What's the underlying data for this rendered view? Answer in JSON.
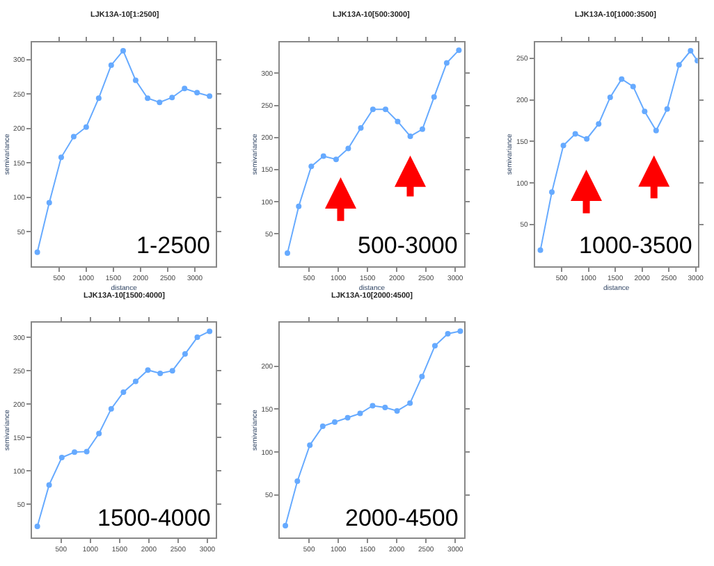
{
  "chart_data": [
    {
      "type": "line",
      "title": "LJK13A-10[1:2500]",
      "xlabel": "distance",
      "ylabel": "semivariance",
      "marker": "circle",
      "annotations": [
        "1-2500"
      ],
      "series": [
        {
          "color": "#66aaff",
          "x": [
            100,
            320,
            540,
            770,
            1000,
            1230,
            1460,
            1680,
            1910,
            2130,
            2350,
            2580,
            2810,
            3040,
            3270
          ],
          "values": [
            20,
            92,
            158,
            188,
            202,
            244,
            292,
            313,
            270,
            244,
            238,
            245,
            258,
            252,
            247
          ]
        }
      ],
      "xlim": [
        0,
        3390
      ],
      "ylim": [
        0,
        325
      ],
      "xticks": [
        500,
        1000,
        1500,
        2000,
        2500,
        3000
      ],
      "yticks": [
        50,
        100,
        150,
        200,
        250,
        300
      ]
    },
    {
      "type": "line",
      "title": "LJK13A-10[500:3000]",
      "xlabel": "distance",
      "ylabel": "semivariance",
      "marker": "circle",
      "annotations": [
        "500-3000"
      ],
      "series": [
        {
          "color": "#66aaff",
          "x": [
            130,
            323,
            538,
            746,
            962,
            1170,
            1385,
            1592,
            1808,
            2015,
            2231,
            2438,
            2638,
            2854,
            3062
          ],
          "values": [
            20,
            93,
            155,
            171,
            166,
            183,
            215,
            244,
            244,
            225,
            202,
            213,
            263,
            316,
            336
          ]
        }
      ],
      "xlim": [
        0,
        3150
      ],
      "ylim": [
        0,
        348
      ],
      "xticks": [
        500,
        1000,
        1500,
        2000,
        2500,
        3000
      ],
      "yticks": [
        50,
        100,
        150,
        200,
        250,
        300
      ]
    },
    {
      "type": "line",
      "title": "LJK13A-10[1000:3500]",
      "xlabel": "distance",
      "ylabel": "semivariance",
      "marker": "circle",
      "annotations": [
        "1000-3500"
      ],
      "series": [
        {
          "color": "#66aaff",
          "x": [
            103,
            317,
            532,
            754,
            968,
            1190,
            1405,
            1619,
            1833,
            2048,
            2262,
            2468,
            2690,
            2905,
            3032
          ],
          "values": [
            19,
            89,
            145,
            159,
            153,
            171,
            203,
            225,
            216,
            186,
            163,
            189,
            242,
            259,
            247
          ]
        }
      ],
      "xlim": [
        0,
        3040
      ],
      "ylim": [
        0,
        269
      ],
      "xticks": [
        500,
        1000,
        1500,
        2000,
        2500,
        3000
      ],
      "yticks": [
        50,
        100,
        150,
        200,
        250
      ]
    },
    {
      "type": "line",
      "title": "LJK13A-10[1500:4000]",
      "ylabel": "semivariance",
      "marker": "circle",
      "annotations": [
        "1500-4000"
      ],
      "series": [
        {
          "color": "#66aaff",
          "x": [
            93,
            295,
            512,
            729,
            938,
            1147,
            1357,
            1566,
            1775,
            1984,
            2194,
            2403,
            2620,
            2829,
            3039
          ],
          "values": [
            17,
            79,
            120,
            128,
            129,
            156,
            193,
            218,
            234,
            251,
            246,
            250,
            275,
            300,
            309
          ]
        }
      ],
      "xlim": [
        0,
        3150
      ],
      "ylim": [
        0,
        322
      ],
      "xticks": [
        500,
        1000,
        1500,
        2000,
        2500,
        3000
      ],
      "yticks": [
        50,
        100,
        150,
        200,
        250,
        300
      ]
    },
    {
      "type": "line",
      "title": "LJK13A-10[2000:4500]",
      "ylabel": "semivariance",
      "marker": "circle",
      "annotations": [
        "2000-4500"
      ],
      "series": [
        {
          "color": "#66aaff",
          "x": [
            95,
            300,
            513,
            734,
            939,
            1160,
            1373,
            1587,
            1800,
            2005,
            2226,
            2431,
            2652,
            2873,
            3086
          ],
          "values": [
            14,
            66,
            108,
            130,
            135,
            140,
            145,
            154,
            152,
            148,
            157,
            188,
            224,
            238,
            241
          ]
        }
      ],
      "xlim": [
        0,
        3150
      ],
      "ylim": [
        0,
        251
      ],
      "xticks": [
        500,
        1000,
        1500,
        2000,
        2500,
        3000
      ],
      "yticks": [
        50,
        100,
        150,
        200
      ]
    }
  ]
}
